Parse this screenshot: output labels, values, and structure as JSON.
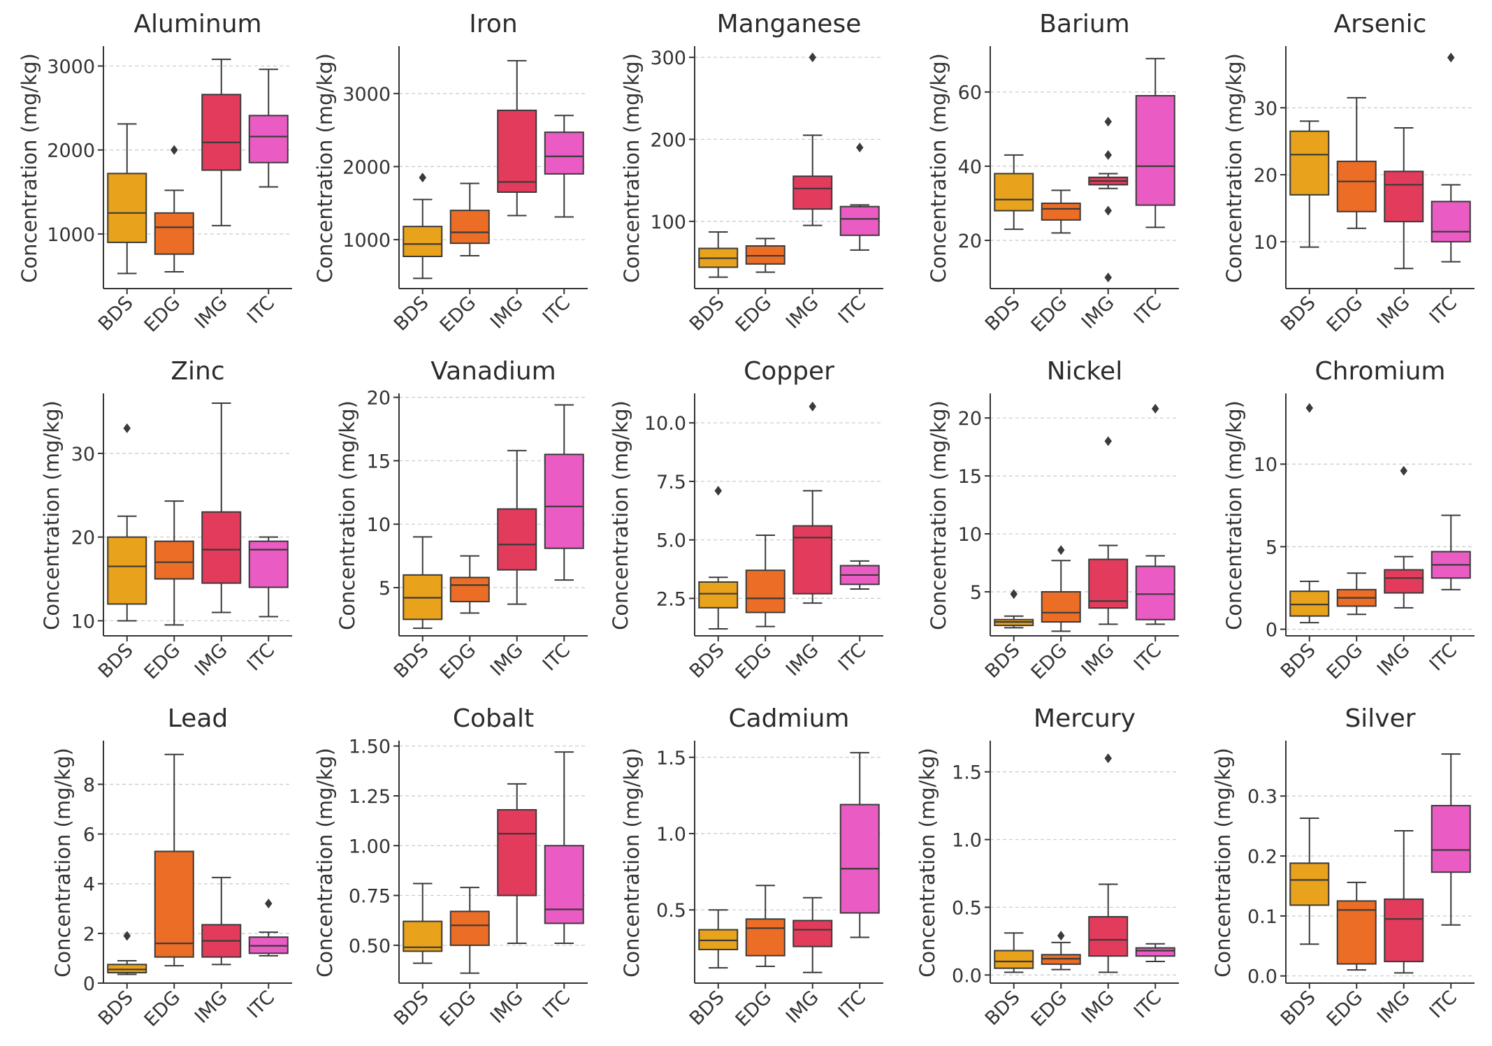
{
  "ylabel": "Concentration (mg/kg)",
  "colors": {
    "BDS": "#e8a21b",
    "EDG": "#ec6d26",
    "IMG": "#e33b5c",
    "ITC": "#ea5cc3"
  },
  "chart_data": [
    {
      "type": "box",
      "title": "Aluminum",
      "categories": [
        "BDS",
        "EDG",
        "IMG",
        "ITC"
      ],
      "ylim": [
        350,
        3220
      ],
      "yticks": [
        1000,
        2000,
        3000
      ],
      "ytick_labels": [
        "1000",
        "2000",
        "3000"
      ],
      "boxes": [
        {
          "min": 530,
          "q1": 900,
          "median": 1250,
          "q3": 1720,
          "max": 2310,
          "outliers": []
        },
        {
          "min": 550,
          "q1": 760,
          "median": 1080,
          "q3": 1250,
          "max": 1520,
          "outliers": [
            2000
          ]
        },
        {
          "min": 1100,
          "q1": 1760,
          "median": 2090,
          "q3": 2660,
          "max": 3080,
          "outliers": []
        },
        {
          "min": 1560,
          "q1": 1850,
          "median": 2160,
          "q3": 2410,
          "max": 2960,
          "outliers": []
        }
      ]
    },
    {
      "type": "box",
      "title": "Iron",
      "categories": [
        "BDS",
        "EDG",
        "IMG",
        "ITC"
      ],
      "ylim": [
        330,
        3630
      ],
      "yticks": [
        1000,
        2000,
        3000
      ],
      "ytick_labels": [
        "1000",
        "2000",
        "3000"
      ],
      "boxes": [
        {
          "min": 470,
          "q1": 770,
          "median": 940,
          "q3": 1180,
          "max": 1550,
          "outliers": [
            1850
          ]
        },
        {
          "min": 780,
          "q1": 950,
          "median": 1100,
          "q3": 1400,
          "max": 1770,
          "outliers": []
        },
        {
          "min": 1330,
          "q1": 1650,
          "median": 1790,
          "q3": 2770,
          "max": 3450,
          "outliers": []
        },
        {
          "min": 1310,
          "q1": 1900,
          "median": 2140,
          "q3": 2470,
          "max": 2700,
          "outliers": []
        }
      ]
    },
    {
      "type": "box",
      "title": "Manganese",
      "categories": [
        "BDS",
        "EDG",
        "IMG",
        "ITC"
      ],
      "ylim": [
        18,
        312
      ],
      "yticks": [
        100,
        200,
        300
      ],
      "ytick_labels": [
        "100",
        "200",
        "300"
      ],
      "boxes": [
        {
          "min": 32,
          "q1": 44,
          "median": 55,
          "q3": 67,
          "max": 87,
          "outliers": []
        },
        {
          "min": 38,
          "q1": 48,
          "median": 58,
          "q3": 70,
          "max": 79,
          "outliers": []
        },
        {
          "min": 95,
          "q1": 115,
          "median": 140,
          "q3": 155,
          "max": 205,
          "outliers": [
            300
          ]
        },
        {
          "min": 65,
          "q1": 83,
          "median": 103,
          "q3": 118,
          "max": 120,
          "outliers": [
            190
          ]
        }
      ]
    },
    {
      "type": "box",
      "title": "Barium",
      "categories": [
        "BDS",
        "EDG",
        "IMG",
        "ITC"
      ],
      "ylim": [
        7,
        72
      ],
      "yticks": [
        20,
        40,
        60
      ],
      "ytick_labels": [
        "20",
        "40",
        "60"
      ],
      "boxes": [
        {
          "min": 23,
          "q1": 28,
          "median": 31,
          "q3": 38,
          "max": 43,
          "outliers": []
        },
        {
          "min": 22,
          "q1": 25.5,
          "median": 28.5,
          "q3": 30,
          "max": 33.5,
          "outliers": []
        },
        {
          "min": 34,
          "q1": 35,
          "median": 36,
          "q3": 37,
          "max": 38,
          "outliers": [
            52,
            43,
            28,
            10
          ]
        },
        {
          "min": 23.5,
          "q1": 29.5,
          "median": 40,
          "q3": 59,
          "max": 69,
          "outliers": []
        }
      ]
    },
    {
      "type": "box",
      "title": "Arsenic",
      "categories": [
        "BDS",
        "EDG",
        "IMG",
        "ITC"
      ],
      "ylim": [
        3,
        39
      ],
      "yticks": [
        10,
        20,
        30
      ],
      "ytick_labels": [
        "10",
        "20",
        "30"
      ],
      "boxes": [
        {
          "min": 9.2,
          "q1": 17,
          "median": 23,
          "q3": 26.5,
          "max": 28,
          "outliers": []
        },
        {
          "min": 12,
          "q1": 14.5,
          "median": 19,
          "q3": 22,
          "max": 31.5,
          "outliers": []
        },
        {
          "min": 6,
          "q1": 13,
          "median": 18.5,
          "q3": 20.5,
          "max": 27,
          "outliers": []
        },
        {
          "min": 7,
          "q1": 10,
          "median": 11.5,
          "q3": 16,
          "max": 18.5,
          "outliers": [
            37.5
          ]
        }
      ]
    },
    {
      "type": "box",
      "title": "Zinc",
      "categories": [
        "BDS",
        "EDG",
        "IMG",
        "ITC"
      ],
      "ylim": [
        8.2,
        37
      ],
      "yticks": [
        10,
        20,
        30
      ],
      "ytick_labels": [
        "10",
        "20",
        "30"
      ],
      "boxes": [
        {
          "min": 10,
          "q1": 12,
          "median": 16.5,
          "q3": 20,
          "max": 22.5,
          "outliers": [
            33
          ]
        },
        {
          "min": 9.5,
          "q1": 15,
          "median": 17,
          "q3": 19.5,
          "max": 24.3,
          "outliers": []
        },
        {
          "min": 11,
          "q1": 14.5,
          "median": 18.5,
          "q3": 23,
          "max": 36,
          "outliers": []
        },
        {
          "min": 10.5,
          "q1": 14,
          "median": 18.5,
          "q3": 19.5,
          "max": 20,
          "outliers": []
        }
      ]
    },
    {
      "type": "box",
      "title": "Vanadium",
      "categories": [
        "BDS",
        "EDG",
        "IMG",
        "ITC"
      ],
      "ylim": [
        1.2,
        20.2
      ],
      "yticks": [
        5,
        10,
        15,
        20
      ],
      "ytick_labels": [
        "5",
        "10",
        "15",
        "20"
      ],
      "boxes": [
        {
          "min": 1.8,
          "q1": 2.5,
          "median": 4.2,
          "q3": 6,
          "max": 9,
          "outliers": []
        },
        {
          "min": 3,
          "q1": 3.9,
          "median": 5.2,
          "q3": 5.8,
          "max": 7.5,
          "outliers": []
        },
        {
          "min": 3.7,
          "q1": 6.4,
          "median": 8.4,
          "q3": 11.2,
          "max": 15.8,
          "outliers": []
        },
        {
          "min": 5.6,
          "q1": 8.1,
          "median": 11.4,
          "q3": 15.5,
          "max": 19.4,
          "outliers": []
        }
      ]
    },
    {
      "type": "box",
      "title": "Copper",
      "categories": [
        "BDS",
        "EDG",
        "IMG",
        "ITC"
      ],
      "ylim": [
        0.9,
        11.2
      ],
      "yticks": [
        2.5,
        5.0,
        7.5,
        10.0
      ],
      "ytick_labels": [
        "2.5",
        "5.0",
        "7.5",
        "10.0"
      ],
      "boxes": [
        {
          "min": 1.2,
          "q1": 2.1,
          "median": 2.7,
          "q3": 3.2,
          "max": 3.4,
          "outliers": [
            7.1
          ]
        },
        {
          "min": 1.3,
          "q1": 1.9,
          "median": 2.5,
          "q3": 3.7,
          "max": 5.2,
          "outliers": []
        },
        {
          "min": 2.3,
          "q1": 2.7,
          "median": 5.1,
          "q3": 5.6,
          "max": 7.1,
          "outliers": [
            10.7
          ]
        },
        {
          "min": 2.9,
          "q1": 3.1,
          "median": 3.5,
          "q3": 3.9,
          "max": 4.1,
          "outliers": []
        }
      ]
    },
    {
      "type": "box",
      "title": "Nickel",
      "categories": [
        "BDS",
        "EDG",
        "IMG",
        "ITC"
      ],
      "ylim": [
        1.2,
        22
      ],
      "yticks": [
        5,
        10,
        15,
        20
      ],
      "ytick_labels": [
        "5",
        "10",
        "15",
        "20"
      ],
      "boxes": [
        {
          "min": 1.9,
          "q1": 2.1,
          "median": 2.4,
          "q3": 2.6,
          "max": 2.9,
          "outliers": [
            4.8
          ]
        },
        {
          "min": 1.6,
          "q1": 2.4,
          "median": 3.2,
          "q3": 5,
          "max": 7.7,
          "outliers": [
            8.6
          ]
        },
        {
          "min": 2.2,
          "q1": 3.6,
          "median": 4.2,
          "q3": 7.8,
          "max": 9,
          "outliers": [
            18
          ]
        },
        {
          "min": 2.2,
          "q1": 2.6,
          "median": 4.8,
          "q3": 7.2,
          "max": 8.1,
          "outliers": [
            20.8
          ]
        }
      ]
    },
    {
      "type": "box",
      "title": "Chromium",
      "categories": [
        "BDS",
        "EDG",
        "IMG",
        "ITC"
      ],
      "ylim": [
        -0.4,
        14.2
      ],
      "yticks": [
        0,
        5,
        10
      ],
      "ytick_labels": [
        "0",
        "5",
        "10"
      ],
      "boxes": [
        {
          "min": 0.4,
          "q1": 0.8,
          "median": 1.5,
          "q3": 2.3,
          "max": 2.9,
          "outliers": [
            13.4
          ]
        },
        {
          "min": 0.9,
          "q1": 1.4,
          "median": 1.9,
          "q3": 2.4,
          "max": 3.4,
          "outliers": []
        },
        {
          "min": 1.3,
          "q1": 2.2,
          "median": 3.1,
          "q3": 3.6,
          "max": 4.4,
          "outliers": [
            9.6
          ]
        },
        {
          "min": 2.4,
          "q1": 3.1,
          "median": 3.9,
          "q3": 4.7,
          "max": 6.9,
          "outliers": []
        }
      ]
    },
    {
      "type": "box",
      "title": "Lead",
      "categories": [
        "BDS",
        "EDG",
        "IMG",
        "ITC"
      ],
      "ylim": [
        0,
        9.7
      ],
      "yticks": [
        0,
        2,
        4,
        6,
        8
      ],
      "ytick_labels": [
        "0",
        "2",
        "4",
        "6",
        "8"
      ],
      "boxes": [
        {
          "min": 0.35,
          "q1": 0.42,
          "median": 0.55,
          "q3": 0.75,
          "max": 0.9,
          "outliers": [
            1.9
          ]
        },
        {
          "min": 0.7,
          "q1": 1.05,
          "median": 1.6,
          "q3": 5.3,
          "max": 9.2,
          "outliers": []
        },
        {
          "min": 0.75,
          "q1": 1.05,
          "median": 1.7,
          "q3": 2.35,
          "max": 4.25,
          "outliers": []
        },
        {
          "min": 1.1,
          "q1": 1.2,
          "median": 1.5,
          "q3": 1.85,
          "max": 2.05,
          "outliers": [
            3.2
          ]
        }
      ]
    },
    {
      "type": "box",
      "title": "Cobalt",
      "categories": [
        "BDS",
        "EDG",
        "IMG",
        "ITC"
      ],
      "ylim": [
        0.31,
        1.52
      ],
      "yticks": [
        0.5,
        0.75,
        1.0,
        1.25,
        1.5
      ],
      "ytick_labels": [
        "0.50",
        "0.75",
        "1.00",
        "1.25",
        "1.50"
      ],
      "boxes": [
        {
          "min": 0.41,
          "q1": 0.47,
          "median": 0.49,
          "q3": 0.62,
          "max": 0.81,
          "outliers": []
        },
        {
          "min": 0.36,
          "q1": 0.5,
          "median": 0.6,
          "q3": 0.67,
          "max": 0.79,
          "outliers": []
        },
        {
          "min": 0.51,
          "q1": 0.75,
          "median": 1.06,
          "q3": 1.18,
          "max": 1.31,
          "outliers": []
        },
        {
          "min": 0.51,
          "q1": 0.61,
          "median": 0.68,
          "q3": 1.0,
          "max": 1.47,
          "outliers": []
        }
      ]
    },
    {
      "type": "box",
      "title": "Cadmium",
      "categories": [
        "BDS",
        "EDG",
        "IMG",
        "ITC"
      ],
      "ylim": [
        0.02,
        1.6
      ],
      "yticks": [
        0.5,
        1.0,
        1.5
      ],
      "ytick_labels": [
        "0.5",
        "1.0",
        "1.5"
      ],
      "boxes": [
        {
          "min": 0.12,
          "q1": 0.24,
          "median": 0.3,
          "q3": 0.37,
          "max": 0.5,
          "outliers": []
        },
        {
          "min": 0.13,
          "q1": 0.2,
          "median": 0.38,
          "q3": 0.44,
          "max": 0.66,
          "outliers": []
        },
        {
          "min": 0.09,
          "q1": 0.26,
          "median": 0.37,
          "q3": 0.43,
          "max": 0.58,
          "outliers": []
        },
        {
          "min": 0.32,
          "q1": 0.48,
          "median": 0.77,
          "q3": 1.19,
          "max": 1.53,
          "outliers": []
        }
      ]
    },
    {
      "type": "box",
      "title": "Mercury",
      "categories": [
        "BDS",
        "EDG",
        "IMG",
        "ITC"
      ],
      "ylim": [
        -0.06,
        1.72
      ],
      "yticks": [
        0.0,
        0.5,
        1.0,
        1.5
      ],
      "ytick_labels": [
        "0.0",
        "0.5",
        "1.0",
        "1.5"
      ],
      "boxes": [
        {
          "min": 0.02,
          "q1": 0.05,
          "median": 0.1,
          "q3": 0.18,
          "max": 0.31,
          "outliers": []
        },
        {
          "min": 0.04,
          "q1": 0.08,
          "median": 0.12,
          "q3": 0.15,
          "max": 0.24,
          "outliers": [
            0.29
          ]
        },
        {
          "min": 0.02,
          "q1": 0.14,
          "median": 0.26,
          "q3": 0.43,
          "max": 0.67,
          "outliers": [
            1.6
          ]
        },
        {
          "min": 0.1,
          "q1": 0.14,
          "median": 0.18,
          "q3": 0.2,
          "max": 0.23,
          "outliers": []
        }
      ]
    },
    {
      "type": "box",
      "title": "Silver",
      "categories": [
        "BDS",
        "EDG",
        "IMG",
        "ITC"
      ],
      "ylim": [
        -0.012,
        0.39
      ],
      "yticks": [
        0.0,
        0.1,
        0.2,
        0.3
      ],
      "ytick_labels": [
        "0.0",
        "0.1",
        "0.2",
        "0.3"
      ],
      "boxes": [
        {
          "min": 0.053,
          "q1": 0.118,
          "median": 0.16,
          "q3": 0.188,
          "max": 0.263,
          "outliers": []
        },
        {
          "min": 0.01,
          "q1": 0.02,
          "median": 0.11,
          "q3": 0.125,
          "max": 0.156,
          "outliers": []
        },
        {
          "min": 0.005,
          "q1": 0.024,
          "median": 0.095,
          "q3": 0.128,
          "max": 0.242,
          "outliers": []
        },
        {
          "min": 0.085,
          "q1": 0.173,
          "median": 0.21,
          "q3": 0.284,
          "max": 0.37,
          "outliers": []
        }
      ]
    }
  ]
}
